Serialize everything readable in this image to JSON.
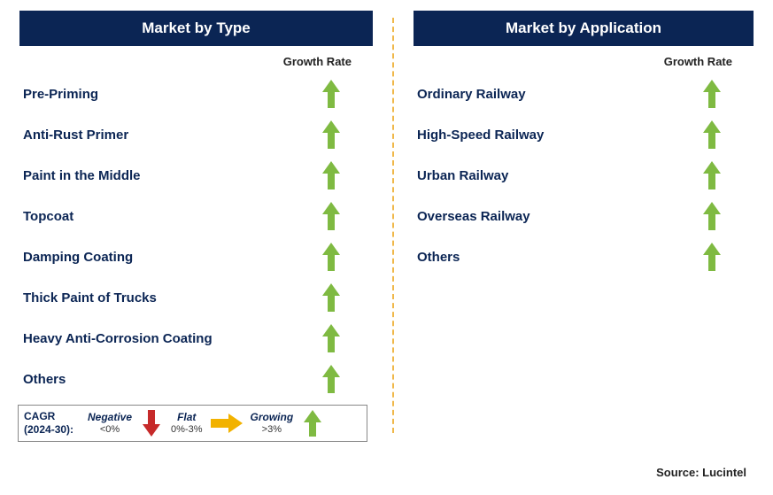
{
  "colors": {
    "header_bg": "#0b2554",
    "header_text": "#ffffff",
    "label_text": "#0b2554",
    "growth_text": "#222222",
    "divider": "#f0b84a",
    "arrow_up": "#7fba42",
    "arrow_down": "#c62a2a",
    "arrow_flat": "#f2b200",
    "legend_border": "#888888",
    "background": "#ffffff"
  },
  "left": {
    "header": "Market by Type",
    "growth_label": "Growth Rate",
    "items": [
      {
        "label": "Pre-Priming",
        "trend": "up"
      },
      {
        "label": "Anti-Rust Primer",
        "trend": "up"
      },
      {
        "label": "Paint in the Middle",
        "trend": "up"
      },
      {
        "label": "Topcoat",
        "trend": "up"
      },
      {
        "label": "Damping Coating",
        "trend": "up"
      },
      {
        "label": "Thick Paint of Trucks",
        "trend": "up"
      },
      {
        "label": "Heavy Anti-Corrosion Coating",
        "trend": "up"
      },
      {
        "label": "Others",
        "trend": "up"
      }
    ]
  },
  "right": {
    "header": "Market by Application",
    "growth_label": "Growth Rate",
    "items": [
      {
        "label": "Ordinary Railway",
        "trend": "up"
      },
      {
        "label": "High-Speed Railway",
        "trend": "up"
      },
      {
        "label": "Urban Railway",
        "trend": "up"
      },
      {
        "label": "Overseas Railway",
        "trend": "up"
      },
      {
        "label": "Others",
        "trend": "up"
      }
    ]
  },
  "legend": {
    "cagr_line1": "CAGR",
    "cagr_line2": "(2024-30):",
    "negative_label": "Negative",
    "negative_range": "<0%",
    "flat_label": "Flat",
    "flat_range": "0%-3%",
    "growing_label": "Growing",
    "growing_range": ">3%"
  },
  "source": "Source: Lucintel"
}
